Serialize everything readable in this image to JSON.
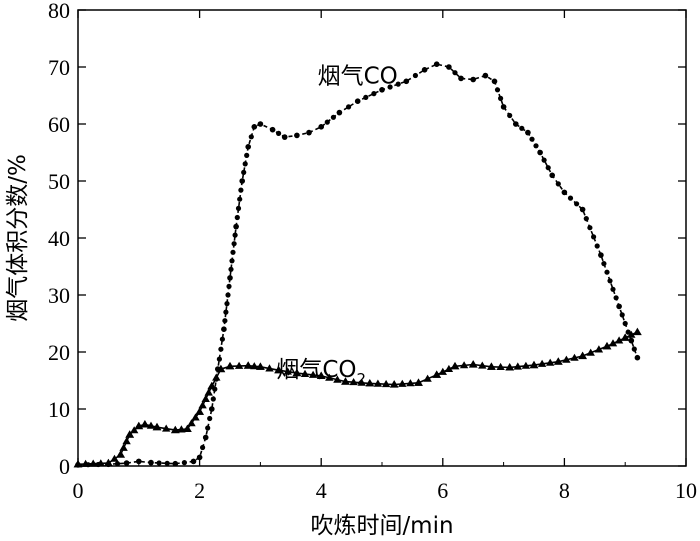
{
  "chart_data": {
    "type": "line",
    "title": "",
    "xlabel": "吹炼时间/min",
    "ylabel": "烟气体积分数/%",
    "xlim": [
      0,
      10
    ],
    "ylim": [
      0,
      80
    ],
    "xticks": [
      "0",
      "2",
      "4",
      "6",
      "8",
      "10"
    ],
    "yticks": [
      "0",
      "10",
      "20",
      "30",
      "40",
      "50",
      "60",
      "70",
      "80"
    ],
    "grid": false,
    "legend": "none",
    "series": [
      {
        "name": "烟气CO",
        "marker": "circle",
        "line_style": "dashed",
        "color": "#000000",
        "x": [
          0,
          0.5,
          0.8,
          1.0,
          1.2,
          1.6,
          1.9,
          2.0,
          2.1,
          2.2,
          2.3,
          2.4,
          2.5,
          2.6,
          2.7,
          2.8,
          2.9,
          3.0,
          3.2,
          3.4,
          3.6,
          3.8,
          4.0,
          4.3,
          4.6,
          5.0,
          5.4,
          5.7,
          5.9,
          6.1,
          6.3,
          6.5,
          6.7,
          6.85,
          7.0,
          7.2,
          7.4,
          7.6,
          7.8,
          8.0,
          8.3,
          8.6,
          8.9,
          9.1,
          9.2
        ],
        "values": [
          0.2,
          0.3,
          0.5,
          0.8,
          0.6,
          0.4,
          0.8,
          1.5,
          5,
          10,
          17,
          24,
          33,
          42,
          50,
          56,
          59.5,
          60,
          59,
          57.7,
          58,
          58.5,
          59.5,
          62,
          64,
          66,
          67.5,
          69.5,
          70.5,
          70,
          68,
          67.8,
          68.5,
          67.5,
          63,
          60,
          58.5,
          55,
          51,
          48,
          45,
          37,
          28,
          22,
          19
        ]
      },
      {
        "name": "烟气CO2",
        "marker": "triangle",
        "line_style": "solid",
        "color": "#000000",
        "x": [
          0,
          0.5,
          0.7,
          0.85,
          1.0,
          1.1,
          1.3,
          1.6,
          1.8,
          2.0,
          2.2,
          2.35,
          2.5,
          2.8,
          3.0,
          3.3,
          3.6,
          4.0,
          4.4,
          4.8,
          5.2,
          5.6,
          5.9,
          6.2,
          6.5,
          6.8,
          7.1,
          7.5,
          7.9,
          8.3,
          8.7,
          9.0,
          9.2
        ],
        "values": [
          0.3,
          0.5,
          2,
          5.5,
          7,
          7.3,
          6.8,
          6.3,
          6.5,
          9.5,
          14,
          17,
          17.5,
          17.6,
          17.4,
          16.8,
          16.3,
          15.8,
          14.8,
          14.5,
          14.3,
          14.6,
          16,
          17.5,
          17.8,
          17.4,
          17.3,
          17.7,
          18.3,
          19.3,
          21,
          22.5,
          23.5
        ]
      }
    ],
    "annotations": [
      {
        "id": "co",
        "prefix": "烟气CO",
        "subscript": "",
        "x": 4.6,
        "y": 68.5
      },
      {
        "id": "co2",
        "prefix": "烟气CO",
        "subscript": "2",
        "x": 4.0,
        "y": 17.0
      }
    ]
  }
}
